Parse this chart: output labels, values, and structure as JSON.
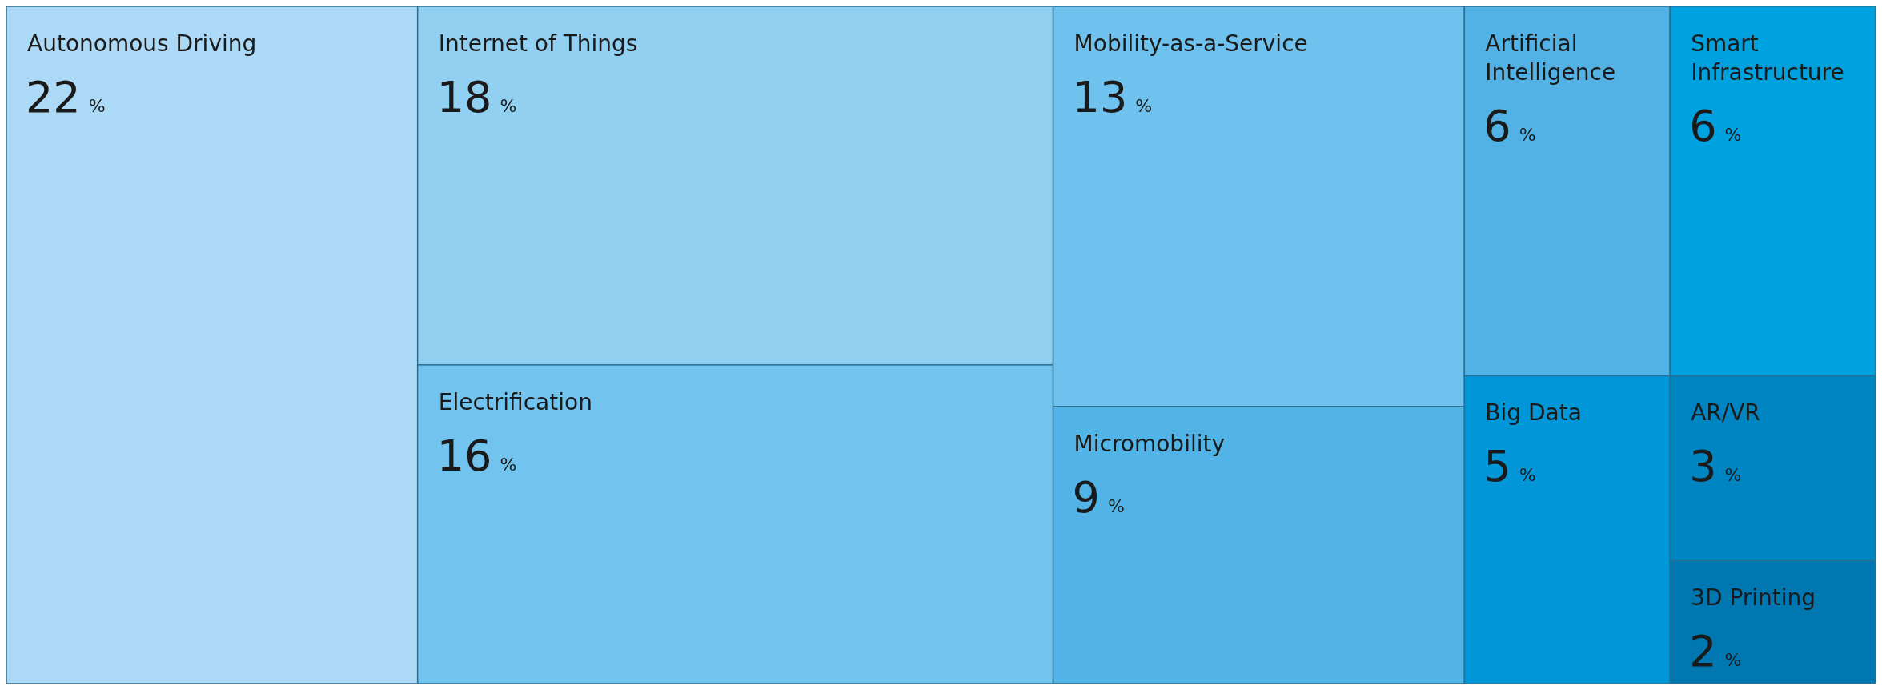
{
  "chart_data": {
    "type": "other",
    "categories": [
      "Autonomous Driving",
      "Internet of Things",
      "Electrification",
      "Mobility-as-a-Service",
      "Micromobility",
      "Artificial Intelligence",
      "Smart Infrastructure",
      "Big Data",
      "AR/VR",
      "3D Printing"
    ],
    "values": [
      22,
      18,
      16,
      13,
      9,
      6,
      6,
      5,
      3,
      2
    ],
    "value_labels": [
      "22 %",
      "18 %",
      "16 %",
      "13 %",
      "9 %",
      "6 %",
      "6 %",
      "5 %",
      "3 %",
      "2 %"
    ],
    "colors": [
      "#acdaf6",
      "#92d0f2",
      "#72c3ee",
      "#70c2ee",
      "#52b3e6",
      "#52b2e5",
      "#00a1df",
      "#0096d8",
      "#0085c3",
      "#0077b0"
    ]
  }
}
